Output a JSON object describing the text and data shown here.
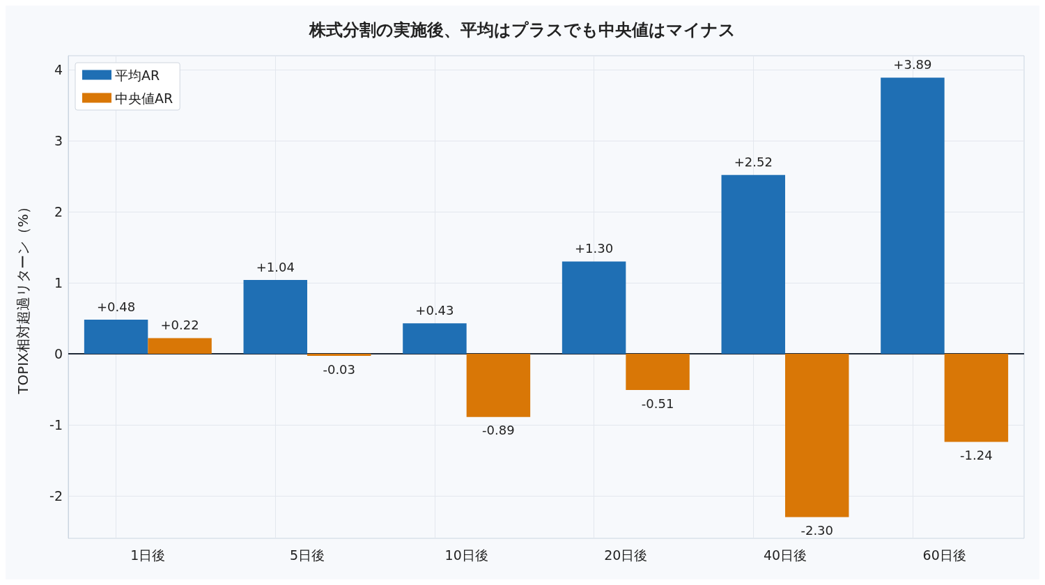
{
  "chart_data": {
    "type": "bar",
    "title": "株式分割の実施後、平均はプラスでも中央値はマイナス",
    "ylabel": "TOPIX相対超過リターン（%）",
    "categories": [
      "1日後",
      "5日後",
      "10日後",
      "20日後",
      "40日後",
      "60日後"
    ],
    "series": [
      {
        "name": "平均AR",
        "color": "#1f6fb4",
        "values": [
          0.48,
          1.04,
          0.43,
          1.3,
          2.52,
          3.89
        ],
        "value_labels": [
          "+0.48",
          "+1.04",
          "+0.43",
          "+1.30",
          "+2.52",
          "+3.89"
        ]
      },
      {
        "name": "中央値AR",
        "color": "#d97706",
        "values": [
          0.22,
          -0.03,
          -0.89,
          -0.51,
          -2.3,
          -1.24
        ],
        "value_labels": [
          "+0.22",
          "-0.03",
          "-0.89",
          "-0.51",
          "-2.30",
          "-1.24"
        ]
      }
    ],
    "ylim": [
      -2.6,
      4.2
    ],
    "yticks": [
      -2,
      -1,
      0,
      1,
      2,
      3,
      4
    ],
    "ref_lines": [
      {
        "axis": "y",
        "value": 0,
        "color": "#1f2937"
      }
    ],
    "grid": true,
    "legend": "top left"
  }
}
